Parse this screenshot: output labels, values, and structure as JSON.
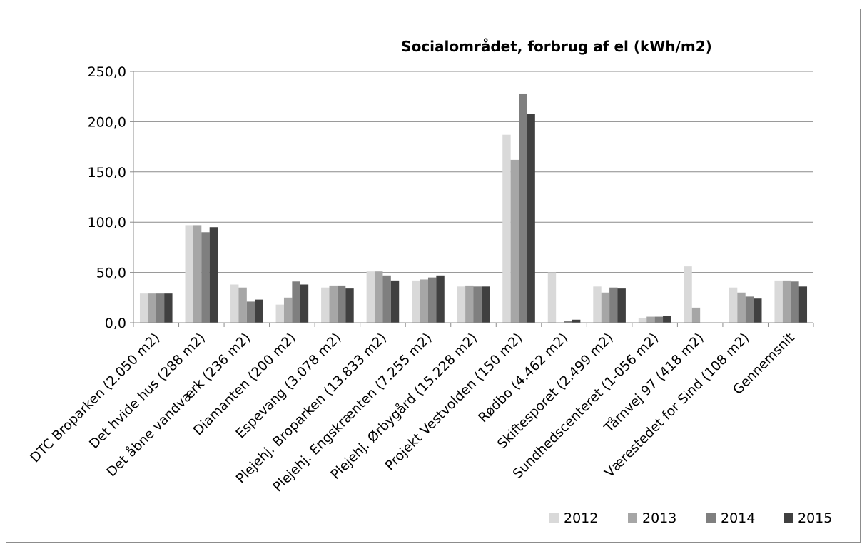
{
  "chart_data": {
    "type": "bar",
    "title": "Socialområdet, forbrug af el (kWh/m2)",
    "xlabel": "",
    "ylabel": "",
    "ylim": [
      0,
      250
    ],
    "yticks": [
      "0,0",
      "50,0",
      "100,0",
      "150,0",
      "200,0",
      "250,0"
    ],
    "grid": true,
    "legend_position": "bottom-right",
    "categories": [
      "DTC Broparken (2.050 m2)",
      "Det hvide hus (288 m2)",
      "Det åbne vandværk (236 m2)",
      "Diamanten (200 m2)",
      "Espevang (3.078 m2)",
      "Plejehj. Broparken (13.833 m2)",
      "Plejehj. Engskrænten (7.255 m2)",
      "Plejehj. Ørbygård (15.228 m2)",
      "Projekt Vestvolden (150 m2)",
      "Rødbo (4.462 m2)",
      "Skiftesporet (2.499 m2)",
      "Sundhedscenteret (1-056 m2)",
      "Tårnvej 97 (418 m2)",
      "Værestedet for Sind (108 m2)",
      "Gennemsnit"
    ],
    "series": [
      {
        "name": "2012",
        "color": "#d9d9d9",
        "values": [
          29,
          97,
          38,
          18,
          35,
          51,
          42,
          36,
          187,
          50,
          36,
          5,
          56,
          35,
          42
        ]
      },
      {
        "name": "2013",
        "color": "#a6a6a6",
        "values": [
          29,
          97,
          35,
          25,
          37,
          51,
          43,
          37,
          162,
          0,
          30,
          6,
          15,
          30,
          42
        ]
      },
      {
        "name": "2014",
        "color": "#7f7f7f",
        "values": [
          29,
          90,
          21,
          41,
          37,
          47,
          45,
          36,
          228,
          2,
          35,
          6,
          0,
          26,
          41
        ]
      },
      {
        "name": "2015",
        "color": "#404040",
        "values": [
          29,
          95,
          23,
          38,
          34,
          42,
          47,
          36,
          208,
          3,
          34,
          7,
          0,
          24,
          36
        ]
      }
    ]
  }
}
